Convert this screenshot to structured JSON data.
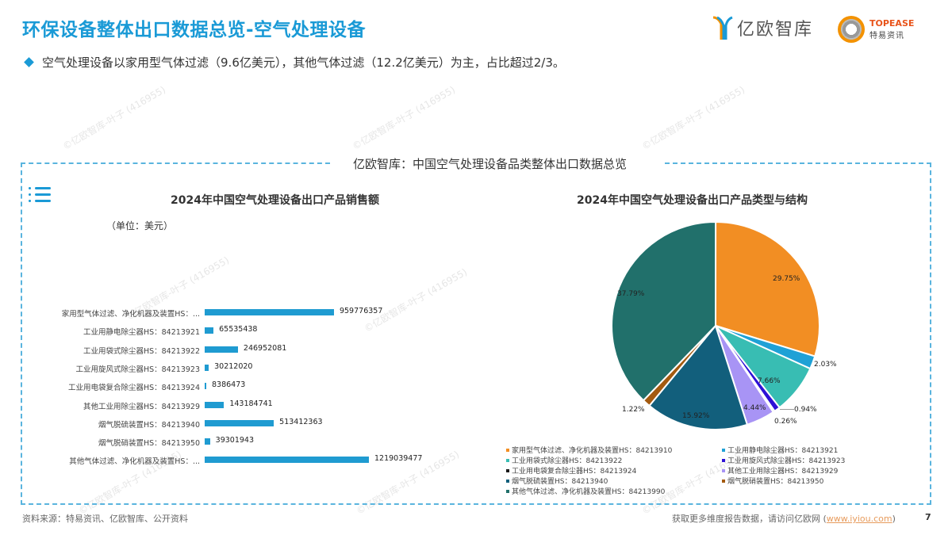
{
  "header": {
    "title": "环保设备整体出口数据总览-空气处理设备",
    "bullet": "空气处理设备以家用型气体过滤（9.6亿美元），其他气体过滤（12.2亿美元）为主，占比超过2/3。",
    "logos": {
      "yiou": "亿欧智库",
      "topease_brand_red": "TOP",
      "topease_brand_rest": "EASE",
      "topease_sub": "特易资讯"
    }
  },
  "panel": {
    "title": "亿欧智库：中国空气处理设备品类整体出口数据总览",
    "menu_icon": "list-icon"
  },
  "watermark": "©亿欧智库-叶子 (416955)",
  "chart_data": [
    {
      "type": "bar",
      "orientation": "horizontal",
      "title": "2024年中国空气处理设备出口产品销售额",
      "unit": "（单位：美元）",
      "color": "#1f9bd1",
      "categories": [
        "家用型气体过滤、净化机器及装置HS：...",
        "工业用静电除尘器HS：84213921",
        "工业用袋式除尘器HS：84213922",
        "工业用旋风式除尘器HS：84213923",
        "工业用电袋复合除尘器HS：84213924",
        "其他工业用除尘器HS：84213929",
        "烟气脱硫装置HS：84213940",
        "烟气脱硝装置HS：84213950",
        "其他气体过滤、净化机器及装置HS：..."
      ],
      "values": [
        959776357,
        65535438,
        246952081,
        30212020,
        8386473,
        143184741,
        513412363,
        39301943,
        1219039477
      ],
      "value_labels": [
        "959776357",
        "65535438",
        "246952081",
        "30212020",
        "8386473",
        "143184741",
        "513412363",
        "39301943",
        "1219039477"
      ],
      "xlabel": "",
      "ylabel": "",
      "grid": false
    },
    {
      "type": "pie",
      "title": "2024年中国空气处理设备出口产品类型与结构",
      "slices": [
        {
          "label": "家用型气体过滤、净化机器及装置HS：84213910",
          "value": 29.75,
          "text": "29.75%",
          "color": "#f28e23"
        },
        {
          "label": "工业用静电除尘器HS：84213921",
          "value": 2.03,
          "text": "2.03%",
          "color": "#1fa1d6"
        },
        {
          "label": "工业用袋式除尘器HS：84213922",
          "value": 7.66,
          "text": "7.66%",
          "color": "#38bdb3"
        },
        {
          "label": "工业用旋风式除尘器HS：84213923",
          "value": 0.94,
          "text": "0.94%",
          "color": "#2d10d6"
        },
        {
          "label": "工业用电袋复合除尘器HS：84213924",
          "value": 0.26,
          "text": "0.26%",
          "color": "#1a1a1a"
        },
        {
          "label": "其他工业用除尘器HS：84213929",
          "value": 4.44,
          "text": "4.44%",
          "color": "#a894f5"
        },
        {
          "label": "烟气脱硫装置HS：84213940",
          "value": 15.92,
          "text": "15.92%",
          "color": "#125f7c"
        },
        {
          "label": "烟气脱硝装置HS：84213950",
          "value": 1.22,
          "text": "1.22%",
          "color": "#a35a10"
        },
        {
          "label": "其他气体过滤、净化机器及装置HS：84213990",
          "value": 37.79,
          "text": "37.79%",
          "color": "#21706b"
        }
      ],
      "legend_position": "bottom"
    }
  ],
  "legend": {
    "left": [
      {
        "text": "家用型气体过滤、净化机器及装置HS：84213910",
        "color": "#f28e23"
      },
      {
        "text": "工业用袋式除尘器HS：84213922",
        "color": "#38bdb3"
      },
      {
        "text": "工业用电袋复合除尘器HS：84213924",
        "color": "#1a1a1a"
      },
      {
        "text": "烟气脱硫装置HS：84213940",
        "color": "#125f7c"
      },
      {
        "text": "其他气体过滤、净化机器及装置HS：84213990",
        "color": "#21706b"
      }
    ],
    "right": [
      {
        "text": "工业用静电除尘器HS：84213921",
        "color": "#1fa1d6"
      },
      {
        "text": "工业用旋风式除尘器HS：84213923",
        "color": "#2d10d6"
      },
      {
        "text": "其他工业用除尘器HS：84213929",
        "color": "#a894f5"
      },
      {
        "text": "烟气脱硝装置HS：84213950",
        "color": "#a35a10"
      }
    ]
  },
  "footer": {
    "source": "资料来源：特易资讯、亿欧智库、公开资料",
    "more_prefix": "获取更多维度报告数据，请访问亿欧网 (",
    "more_link": "www.iyiou.com",
    "more_suffix": ")",
    "page": "7"
  },
  "colors": {
    "accent": "#1a9ad6",
    "bar": "#1f9bd1",
    "frame": "#5ab4de"
  }
}
